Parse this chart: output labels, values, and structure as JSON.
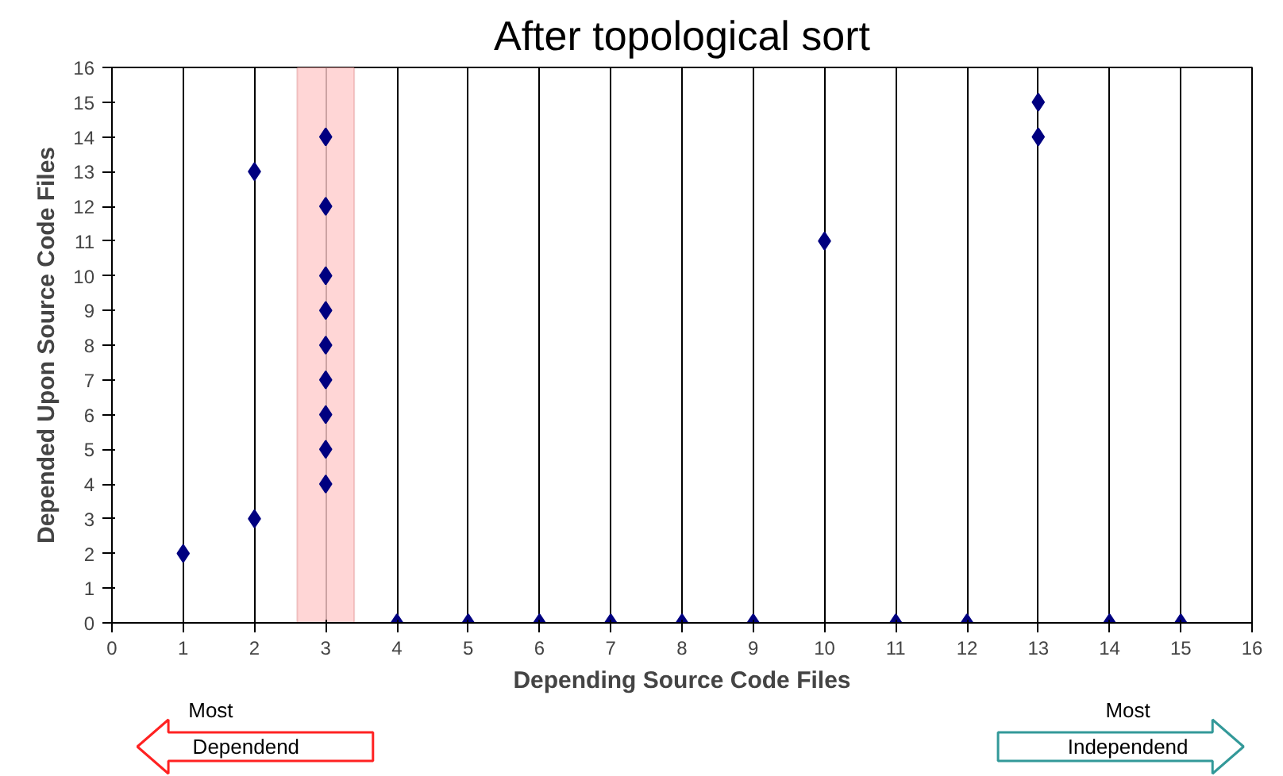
{
  "chart_data": {
    "type": "scatter",
    "title": "After topological sort",
    "xlabel": "Depending Source Code Files",
    "ylabel": "Depended Upon Source Code Files",
    "x": [
      1,
      2,
      2,
      3,
      3,
      3,
      3,
      3,
      3,
      3,
      3,
      3,
      4,
      5,
      6,
      7,
      8,
      9,
      10,
      11,
      12,
      13,
      13,
      14,
      15
    ],
    "series": [
      {
        "color": "#000080",
        "values": [
          2,
          13,
          3,
          4,
          5,
          6,
          7,
          8,
          9,
          10,
          12,
          14,
          0,
          0,
          0,
          0,
          0,
          0,
          11,
          0,
          0,
          15,
          14,
          0,
          0
        ]
      }
    ],
    "xlim": [
      0,
      16
    ],
    "xticks": [
      0,
      1,
      2,
      3,
      4,
      5,
      6,
      7,
      8,
      9,
      10,
      11,
      12,
      13,
      14,
      15,
      16
    ],
    "ylim": [
      0,
      16
    ],
    "yticks": [
      0,
      1,
      2,
      3,
      4,
      5,
      6,
      7,
      8,
      9,
      10,
      11,
      12,
      13,
      14,
      15,
      16
    ],
    "grid": "x",
    "marker": "diamond",
    "bands": [
      {
        "axis": "x",
        "from": 2.6,
        "to": 3.4,
        "color": "#ffcccc"
      }
    ],
    "annotations": [
      "Most",
      "Dependend",
      "Most",
      "Independend"
    ]
  }
}
